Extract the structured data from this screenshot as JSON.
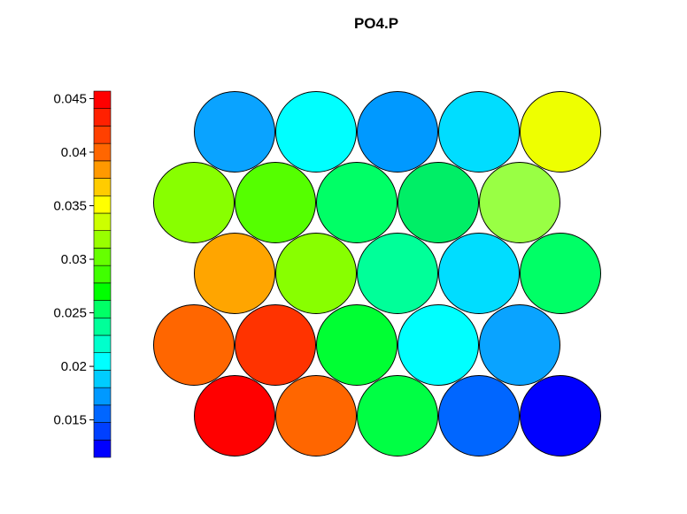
{
  "chart_data": {
    "type": "heatmap",
    "subtype": "hexagonal SOM component plane",
    "title": "PO4.P",
    "grid": {
      "rows": 5,
      "cols": 5,
      "layout": "hexagonal",
      "note": "rows listed top to bottom; rows 2 and 4 shifted left"
    },
    "colorbar": {
      "range": [
        0.0115,
        0.0457
      ],
      "ticks": [
        0.015,
        0.02,
        0.025,
        0.03,
        0.035,
        0.04,
        0.045
      ],
      "tick_labels": [
        "0.015",
        "0.02",
        "0.025",
        "0.03",
        "0.035",
        "0.04",
        "0.045"
      ],
      "colors_bottom_to_top": [
        "#0000ff",
        "#0040ff",
        "#0066ff",
        "#0099ff",
        "#00ccff",
        "#00ffff",
        "#00ffcc",
        "#00ff99",
        "#00ff66",
        "#00ff00",
        "#40ff00",
        "#66ff00",
        "#99ff00",
        "#ccff00",
        "#ffff00",
        "#ffcc00",
        "#ff9900",
        "#ff6600",
        "#ff4000",
        "#ff2000",
        "#ff0000"
      ]
    },
    "values": [
      [
        0.018,
        0.0215,
        0.0175,
        0.0205,
        0.0365
      ],
      [
        0.0325,
        0.031,
        0.028,
        0.0275,
        0.0325
      ],
      [
        0.038,
        0.033,
        0.026,
        0.021,
        0.0275
      ],
      [
        0.0415,
        0.043,
        0.029,
        0.022,
        0.018
      ],
      [
        0.045,
        0.0415,
        0.0285,
        0.0155,
        0.0125
      ]
    ],
    "cell_colors": [
      [
        "#0aa3ff",
        "#00ffff",
        "#0099ff",
        "#00ddff",
        "#eeff00"
      ],
      [
        "#88ff00",
        "#55ff00",
        "#00ff66",
        "#00ee66",
        "#99ff44"
      ],
      [
        "#ffa500",
        "#88ff00",
        "#00ff99",
        "#00ddff",
        "#00ff66"
      ],
      [
        "#ff6600",
        "#ff3300",
        "#00ff33",
        "#00ffff",
        "#0aa3ff"
      ],
      [
        "#ff0000",
        "#ff6600",
        "#00ff44",
        "#0066ff",
        "#0000ff"
      ]
    ]
  }
}
